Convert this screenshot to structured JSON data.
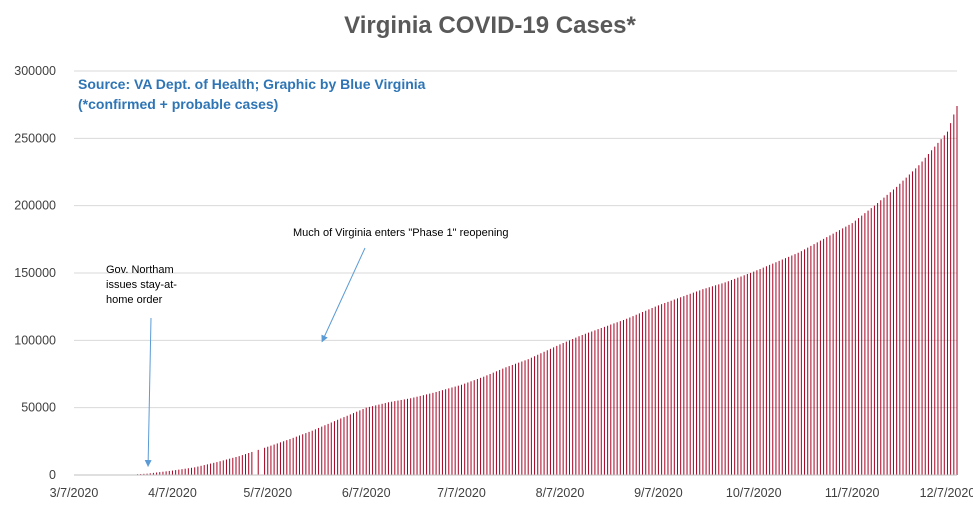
{
  "chart_data": {
    "type": "bar",
    "title": "Virginia COVID-19 Cases*",
    "source_line1": "Source: VA Dept. of Health; Graphic by Blue Virginia",
    "source_line2": "(*confirmed + probable cases)",
    "xlabel": "",
    "ylabel": "",
    "ylim": [
      0,
      300000
    ],
    "y_ticks": [
      {
        "value": 0,
        "label": "0"
      },
      {
        "value": 50000,
        "label": "50000"
      },
      {
        "value": 100000,
        "label": "100000"
      },
      {
        "value": 150000,
        "label": "150000"
      },
      {
        "value": 200000,
        "label": "200000"
      },
      {
        "value": 250000,
        "label": "250000"
      },
      {
        "value": 300000,
        "label": "300000"
      }
    ],
    "x_range": [
      "2020-03-07",
      "2020-12-10"
    ],
    "x_ticks": [
      {
        "date": "2020-03-07",
        "label": "3/7/2020"
      },
      {
        "date": "2020-04-07",
        "label": "4/7/2020"
      },
      {
        "date": "2020-05-07",
        "label": "5/7/2020"
      },
      {
        "date": "2020-06-07",
        "label": "6/7/2020"
      },
      {
        "date": "2020-07-07",
        "label": "7/7/2020"
      },
      {
        "date": "2020-08-07",
        "label": "8/7/2020"
      },
      {
        "date": "2020-09-07",
        "label": "9/7/2020"
      },
      {
        "date": "2020-10-07",
        "label": "10/7/2020"
      },
      {
        "date": "2020-11-07",
        "label": "11/7/2020"
      },
      {
        "date": "2020-12-07",
        "label": "12/7/2020"
      }
    ],
    "grid": "horizontal",
    "bar_color": "#a50021",
    "series_points": [
      {
        "date": "2020-03-07",
        "value": 0
      },
      {
        "date": "2020-03-23",
        "value": 100
      },
      {
        "date": "2020-03-30",
        "value": 1000
      },
      {
        "date": "2020-04-07",
        "value": 3300
      },
      {
        "date": "2020-04-14",
        "value": 5700
      },
      {
        "date": "2020-04-21",
        "value": 9600
      },
      {
        "date": "2020-04-28",
        "value": 14000
      },
      {
        "date": "2020-05-07",
        "value": 21000
      },
      {
        "date": "2020-05-14",
        "value": 26700
      },
      {
        "date": "2020-05-21",
        "value": 32900
      },
      {
        "date": "2020-05-28",
        "value": 40000
      },
      {
        "date": "2020-06-07",
        "value": 50000
      },
      {
        "date": "2020-06-14",
        "value": 54000
      },
      {
        "date": "2020-06-21",
        "value": 57000
      },
      {
        "date": "2020-06-28",
        "value": 61000
      },
      {
        "date": "2020-07-07",
        "value": 67000
      },
      {
        "date": "2020-07-14",
        "value": 73000
      },
      {
        "date": "2020-07-21",
        "value": 80000
      },
      {
        "date": "2020-07-28",
        "value": 86000
      },
      {
        "date": "2020-08-07",
        "value": 97000
      },
      {
        "date": "2020-08-14",
        "value": 104000
      },
      {
        "date": "2020-08-21",
        "value": 110000
      },
      {
        "date": "2020-08-28",
        "value": 116000
      },
      {
        "date": "2020-09-07",
        "value": 126000
      },
      {
        "date": "2020-09-14",
        "value": 132000
      },
      {
        "date": "2020-09-21",
        "value": 138000
      },
      {
        "date": "2020-09-28",
        "value": 143000
      },
      {
        "date": "2020-10-07",
        "value": 151000
      },
      {
        "date": "2020-10-14",
        "value": 158000
      },
      {
        "date": "2020-10-21",
        "value": 165000
      },
      {
        "date": "2020-10-28",
        "value": 174000
      },
      {
        "date": "2020-11-07",
        "value": 187000
      },
      {
        "date": "2020-11-14",
        "value": 200000
      },
      {
        "date": "2020-11-21",
        "value": 214000
      },
      {
        "date": "2020-11-28",
        "value": 230000
      },
      {
        "date": "2020-12-07",
        "value": 255000
      },
      {
        "date": "2020-12-10",
        "value": 274000
      }
    ],
    "gaps": [
      "2020-05-03",
      "2020-05-05"
    ],
    "annotations": [
      {
        "lines": [
          "Gov. Northam",
          "issues stay-at-",
          "home order"
        ],
        "date": "2020-03-30",
        "value": 2000
      },
      {
        "lines": [
          "Much of Virginia enters \"Phase 1\" reopening"
        ],
        "date": "2020-05-15",
        "value": 93000
      }
    ]
  }
}
